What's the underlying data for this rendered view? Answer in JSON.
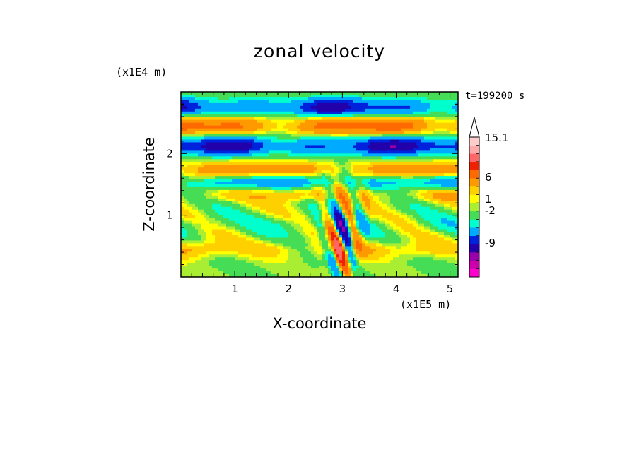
{
  "chart_data": {
    "type": "heatmap",
    "title": "zonal velocity",
    "xlabel": "X-coordinate",
    "ylabel": "Z-coordinate",
    "x_unit": "(x1E5 m)",
    "y_unit": "(x1E4 m)",
    "time_label": "t=199200 s",
    "xlim": [
      0,
      5.15
    ],
    "ylim": [
      0,
      3.0
    ],
    "x_ticks": [
      1,
      2,
      3,
      4,
      5
    ],
    "y_ticks": [
      1,
      2
    ],
    "colorbar": {
      "labels": [
        "15.1",
        "6",
        "1",
        "-2",
        "-9"
      ],
      "colors": [
        "#ff00cc",
        "#cc00aa",
        "#9900aa",
        "#2200aa",
        "#0022dd",
        "#00aaff",
        "#00ffcc",
        "#44dd55",
        "#aaee33",
        "#ffff00",
        "#ffd000",
        "#ff9900",
        "#ff6a00",
        "#ee2200",
        "#ff6666",
        "#ffaaaa",
        "#ffcccc"
      ]
    },
    "contour_bands": [
      {
        "z": 2.75,
        "value": -6
      },
      {
        "z": 2.45,
        "value": 5
      },
      {
        "z": 2.12,
        "value": -7
      },
      {
        "z": 1.72,
        "value": 4
      },
      {
        "z": 1.55,
        "value": -4
      },
      {
        "z": 1.35,
        "value": 2
      },
      {
        "z": 0.85,
        "value": -1
      },
      {
        "z": 0.45,
        "value": 2
      }
    ],
    "center_x": 3.0
  }
}
